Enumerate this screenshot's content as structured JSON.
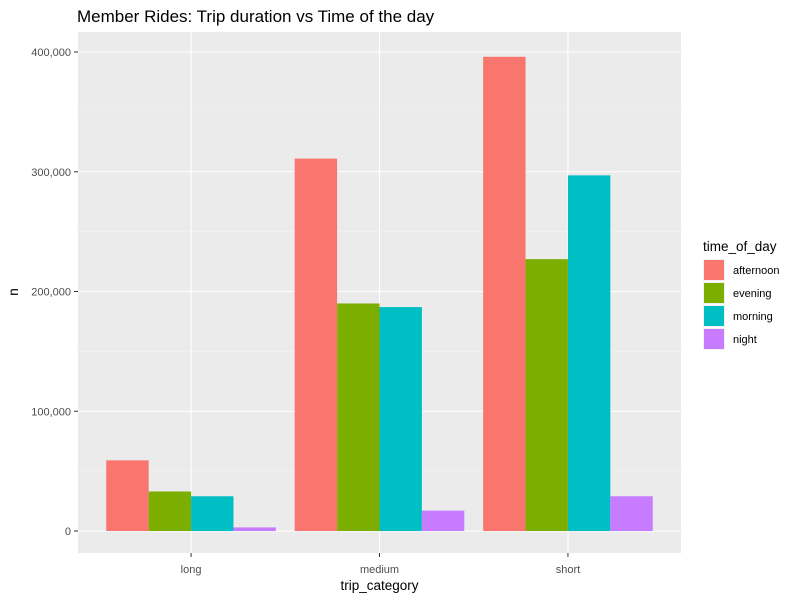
{
  "chart_data": {
    "type": "bar",
    "title": "Member Rides: Trip duration vs Time of the day",
    "xlabel": "trip_category",
    "ylabel": "n",
    "categories": [
      "long",
      "medium",
      "short"
    ],
    "ylim": [
      0,
      420000
    ],
    "yticks": [
      0,
      100000,
      200000,
      300000,
      400000
    ],
    "ytick_labels": [
      "0",
      "100,000",
      "200,000",
      "300,000",
      "400,000"
    ],
    "grid": true,
    "legend": {
      "title": "time_of_day",
      "position": "right"
    },
    "series": [
      {
        "name": "afternoon",
        "color": "#F8766D",
        "values": [
          59000,
          311000,
          396000
        ]
      },
      {
        "name": "evening",
        "color": "#7CAE00",
        "values": [
          33000,
          190000,
          227000
        ]
      },
      {
        "name": "morning",
        "color": "#00BFC4",
        "values": [
          29000,
          187000,
          297000
        ]
      },
      {
        "name": "night",
        "color": "#C77CFF",
        "values": [
          3000,
          17000,
          29000
        ]
      }
    ]
  }
}
